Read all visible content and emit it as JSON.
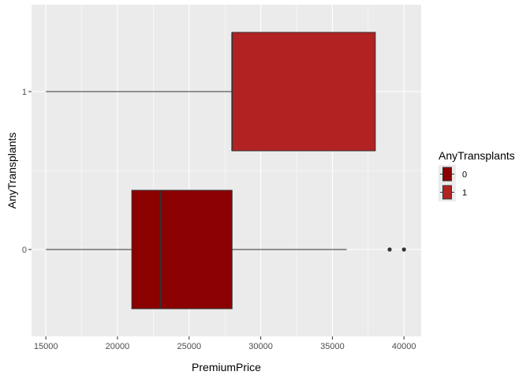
{
  "chart_data": {
    "type": "boxplot",
    "orientation": "horizontal",
    "xlabel": "PremiumPrice",
    "ylabel": "AnyTransplants",
    "xlim": [
      14000,
      41200
    ],
    "x_ticks": [
      15000,
      20000,
      25000,
      30000,
      35000,
      40000
    ],
    "x_tick_labels": [
      "15000",
      "20000",
      "25000",
      "30000",
      "35000",
      "40000"
    ],
    "y_ticks": [
      0,
      1
    ],
    "y_tick_labels": [
      "0",
      "1"
    ],
    "ylim": [
      -0.55,
      1.55
    ],
    "grid": true,
    "legend": {
      "title": "AnyTransplants",
      "placement": "right",
      "entries": [
        {
          "label": "0",
          "color": "#8B0000"
        },
        {
          "label": "1",
          "color": "#B22222"
        }
      ]
    },
    "boxes": [
      {
        "group": "0",
        "y": 0,
        "whisker_low": 15000,
        "q1": 21000,
        "median": 23000,
        "q3": 28000,
        "whisker_high": 36000,
        "outliers": [
          39000,
          40000
        ],
        "color": "#8B0000"
      },
      {
        "group": "1",
        "y": 1,
        "whisker_low": 15000,
        "q1": 28000,
        "median": 28000,
        "q3": 38000,
        "whisker_high": 38000,
        "outliers": [],
        "color": "#B22222"
      }
    ],
    "colors": {
      "panel_bg": "#EBEBEB",
      "grid_major": "#FFFFFF",
      "line": "#333333",
      "tick_text": "#4D4D4D"
    }
  }
}
